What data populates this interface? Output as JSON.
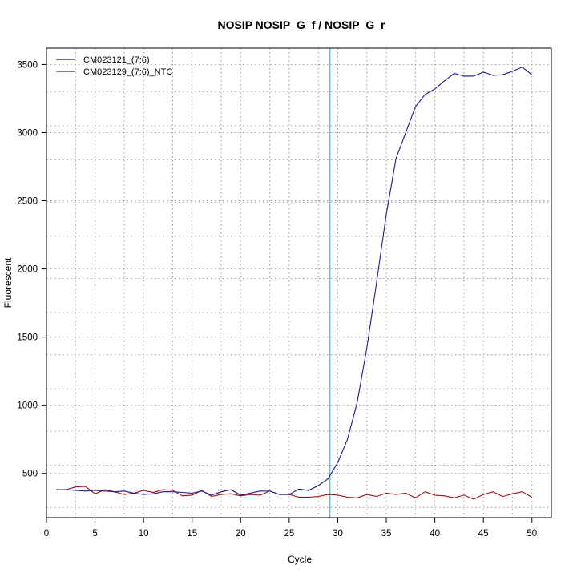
{
  "chart_data": {
    "type": "line",
    "title": "NOSIP  NOSIP_G_f / NOSIP_G_r",
    "xlabel": "Cycle",
    "ylabel": "Fluorescent",
    "xlim": [
      0,
      52
    ],
    "ylim": [
      175,
      3620
    ],
    "x_ticks": [
      0,
      5,
      10,
      15,
      20,
      25,
      30,
      35,
      40,
      45,
      50
    ],
    "y_ticks": [
      500,
      1000,
      1500,
      2000,
      2500,
      3000,
      3500
    ],
    "x_grid": [
      3,
      8,
      13,
      18,
      23,
      28,
      33,
      38,
      43,
      48
    ],
    "y_grid": [
      250,
      560,
      810,
      1120,
      1370,
      1680,
      1930,
      2240,
      2490,
      2800,
      3050,
      3300
    ],
    "grid": true,
    "threshold_x": 29.2,
    "threshold_color": "#00d0e8",
    "legend_position": "top-left",
    "x": [
      1,
      2,
      3,
      4,
      5,
      6,
      7,
      8,
      9,
      10,
      11,
      12,
      13,
      14,
      15,
      16,
      17,
      18,
      19,
      20,
      21,
      22,
      23,
      24,
      25,
      26,
      27,
      28,
      29,
      30,
      31,
      32,
      33,
      34,
      35,
      36,
      37,
      38,
      39,
      40,
      41,
      42,
      43,
      44,
      45,
      46,
      47,
      48,
      49,
      50
    ],
    "series": [
      {
        "name": "CM023121_(7:6)",
        "color": "#1a1a8c",
        "values": [
          380,
          380,
          375,
          370,
          375,
          370,
          365,
          370,
          355,
          345,
          350,
          365,
          365,
          360,
          355,
          370,
          340,
          365,
          380,
          340,
          355,
          370,
          370,
          345,
          345,
          385,
          375,
          410,
          460,
          580,
          750,
          1020,
          1420,
          1900,
          2400,
          2810,
          3000,
          3190,
          3280,
          3320,
          3380,
          3435,
          3415,
          3415,
          3445,
          3420,
          3425,
          3450,
          3480,
          3425
        ]
      },
      {
        "name": "CM023129_(7:6)_NTC",
        "color": "#a01010",
        "values": [
          380,
          380,
          400,
          405,
          350,
          380,
          365,
          345,
          355,
          375,
          360,
          380,
          375,
          335,
          340,
          375,
          330,
          345,
          350,
          335,
          345,
          340,
          370,
          345,
          345,
          325,
          325,
          330,
          345,
          340,
          325,
          320,
          345,
          330,
          355,
          345,
          355,
          320,
          365,
          340,
          335,
          320,
          340,
          310,
          345,
          365,
          330,
          350,
          365,
          325
        ]
      }
    ]
  }
}
